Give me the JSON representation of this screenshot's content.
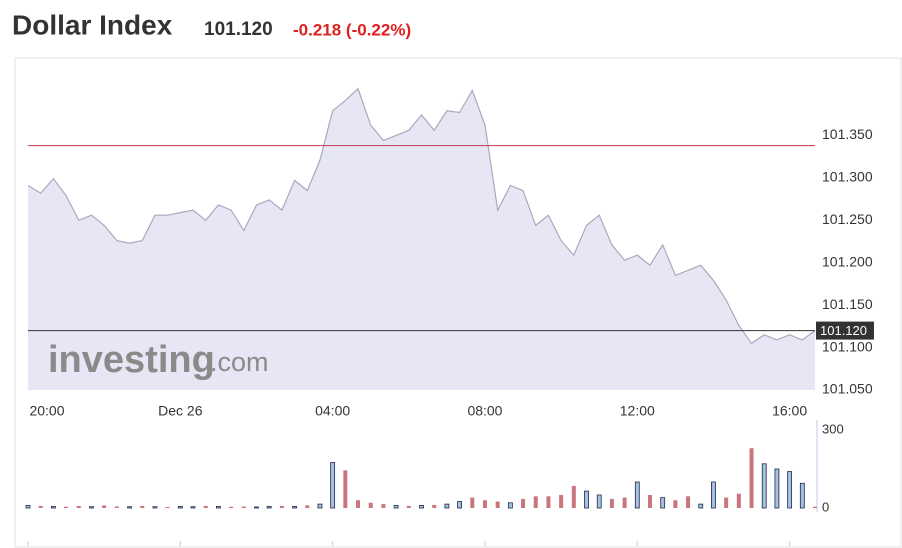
{
  "chart_data": {
    "type": "area",
    "title": "Dollar Index",
    "price_label": "101.120",
    "change_label": "-0.218 (-0.22%)",
    "watermark": {
      "brand": "investing",
      "suffix": ".com"
    },
    "x": [
      "20:00",
      "20:20",
      "20:40",
      "21:00",
      "21:20",
      "21:40",
      "22:00",
      "22:20",
      "22:40",
      "23:00",
      "23:20",
      "23:40",
      "00:00",
      "00:20",
      "00:40",
      "01:00",
      "01:20",
      "01:40",
      "02:00",
      "02:20",
      "02:40",
      "03:00",
      "03:20",
      "03:40",
      "04:00",
      "04:20",
      "04:40",
      "05:00",
      "05:20",
      "05:40",
      "06:00",
      "06:20",
      "06:40",
      "07:00",
      "07:20",
      "07:40",
      "08:00",
      "08:20",
      "08:40",
      "09:00",
      "09:20",
      "09:40",
      "10:00",
      "10:20",
      "10:40",
      "11:00",
      "11:20",
      "11:40",
      "12:00",
      "12:20",
      "12:40",
      "13:00",
      "13:20",
      "13:40",
      "14:00",
      "14:20",
      "14:40",
      "15:00",
      "15:20",
      "15:40",
      "16:00",
      "16:20",
      "16:40"
    ],
    "values": [
      101.291,
      101.282,
      101.299,
      101.279,
      101.25,
      101.256,
      101.244,
      101.226,
      101.223,
      101.226,
      101.256,
      101.256,
      101.259,
      101.262,
      101.25,
      101.268,
      101.262,
      101.238,
      101.268,
      101.274,
      101.262,
      101.297,
      101.285,
      101.321,
      101.379,
      101.391,
      101.405,
      101.362,
      101.344,
      101.35,
      101.356,
      101.374,
      101.356,
      101.379,
      101.377,
      101.403,
      101.362,
      101.262,
      101.291,
      101.285,
      101.244,
      101.256,
      101.226,
      101.209,
      101.244,
      101.256,
      101.221,
      101.203,
      101.209,
      101.197,
      101.221,
      101.185,
      101.191,
      101.197,
      101.179,
      101.156,
      101.126,
      101.105,
      101.115,
      101.109,
      101.115,
      101.109,
      101.12
    ],
    "color": "#a9a9bd",
    "fill": "#e6e6f5",
    "xlim": [
      "20:00",
      "16:40"
    ],
    "xticks": [
      "20:00",
      {
        "value": "00:00",
        "label": "Dec 26"
      },
      "04:00",
      "08:00",
      "12:00",
      "16:00"
    ],
    "ylim": [
      101.05,
      101.42
    ],
    "yticks": [
      {
        "value": 101.05,
        "label": "101.050"
      },
      {
        "value": 101.1,
        "label": "101.100"
      },
      {
        "value": 101.15,
        "label": "101.150"
      },
      {
        "value": 101.2,
        "label": "101.200"
      },
      {
        "value": 101.25,
        "label": "101.250"
      },
      {
        "value": 101.3,
        "label": "101.300"
      },
      {
        "value": 101.35,
        "label": "101.350"
      }
    ],
    "grid": false,
    "ref_lines": [
      {
        "value": 101.338,
        "color": "#c0394b"
      },
      {
        "value": 101.12,
        "color": "#333333",
        "label": "101.120"
      }
    ],
    "volume": {
      "ylim": [
        0,
        300
      ],
      "yticks": [
        0,
        300
      ],
      "values": [
        10,
        8,
        6,
        5,
        8,
        5,
        10,
        6,
        5,
        8,
        5,
        4,
        6,
        5,
        8,
        6,
        5,
        6,
        4,
        6,
        8,
        6,
        10,
        15,
        175,
        145,
        30,
        20,
        15,
        10,
        8,
        10,
        12,
        15,
        25,
        40,
        30,
        25,
        20,
        35,
        45,
        45,
        50,
        85,
        65,
        50,
        35,
        40,
        100,
        50,
        40,
        30,
        45,
        15,
        100,
        40,
        55,
        230,
        170,
        150,
        140,
        95,
        5
      ],
      "colors": [
        "#a8c0e0",
        "#c8767c",
        "#a8c0e0",
        "#c8767c",
        "#c8767c",
        "#a8c0e0",
        "#c8767c",
        "#c8767c",
        "#a8c0e0",
        "#c8767c",
        "#a8c0e0",
        "#c8767c",
        "#a8c0e0",
        "#a8c0e0",
        "#c8767c",
        "#a8c0e0",
        "#c8767c",
        "#c8767c",
        "#a8c0e0",
        "#a8c0e0",
        "#c8767c",
        "#a8c0e0",
        "#c8767c",
        "#a8c0e0",
        "#a8c0e0",
        "#c8767c",
        "#c8767c",
        "#c8767c",
        "#c8767c",
        "#a8c0e0",
        "#c8767c",
        "#a8c0e0",
        "#c8767c",
        "#a8c0e0",
        "#a8c0e0",
        "#c8767c",
        "#c8767c",
        "#c8767c",
        "#a8c0e0",
        "#c8767c",
        "#c8767c",
        "#c8767c",
        "#c8767c",
        "#c8767c",
        "#a8c0e0",
        "#a8c0e0",
        "#c8767c",
        "#c8767c",
        "#a8c0e0",
        "#c8767c",
        "#a8c0e0",
        "#c8767c",
        "#c8767c",
        "#a8c0e0",
        "#a8c0e0",
        "#c8767c",
        "#c8767c",
        "#c8767c",
        "#a8c0e0",
        "#a8c0e0",
        "#a8c0e0",
        "#a8c0e0",
        "#c8767c"
      ]
    }
  }
}
